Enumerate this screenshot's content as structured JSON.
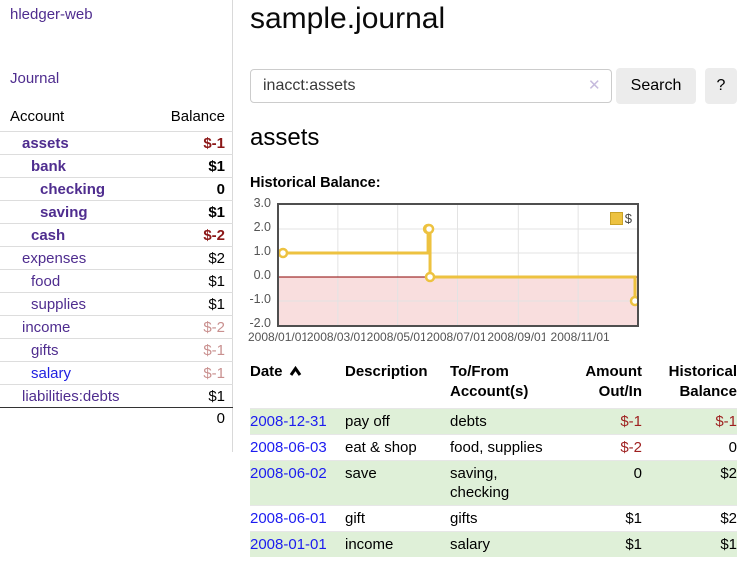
{
  "sidebar": {
    "brand": "hledger-web",
    "nav": {
      "journal_label": "Journal"
    },
    "accounts_table": {
      "headers": {
        "account": "Account",
        "balance": "Balance"
      },
      "rows": [
        {
          "name": "assets",
          "depth": 1,
          "balance": "$-1",
          "bold": true,
          "balance_style": "neg-strong"
        },
        {
          "name": "bank",
          "depth": 2,
          "balance": "$1",
          "bold": true,
          "balance_style": ""
        },
        {
          "name": "checking",
          "depth": 3,
          "balance": "0",
          "bold": true,
          "balance_style": ""
        },
        {
          "name": "saving",
          "depth": 3,
          "balance": "$1",
          "bold": true,
          "balance_style": ""
        },
        {
          "name": "cash",
          "depth": 2,
          "balance": "$-2",
          "bold": true,
          "balance_style": "neg-strong"
        },
        {
          "name": "expenses",
          "depth": 1,
          "balance": "$2",
          "bold": false,
          "balance_style": ""
        },
        {
          "name": "food",
          "depth": 2,
          "balance": "$1",
          "bold": false,
          "balance_style": ""
        },
        {
          "name": "supplies",
          "depth": 2,
          "balance": "$1",
          "bold": false,
          "balance_style": ""
        },
        {
          "name": "income",
          "depth": 1,
          "balance": "$-2",
          "bold": false,
          "balance_style": "neg-soft"
        },
        {
          "name": "gifts",
          "depth": 2,
          "balance": "$-1",
          "bold": false,
          "balance_style": "neg-soft"
        },
        {
          "name": "salary",
          "depth": 2,
          "balance": "$-1",
          "bold": false,
          "balance_style": "neg-soft",
          "name_style": "unvisited"
        },
        {
          "name": "liabilities:debts",
          "depth": 1,
          "balance": "$1",
          "bold": false,
          "balance_style": ""
        }
      ],
      "total": "0"
    }
  },
  "header": {
    "title": "sample.journal"
  },
  "search": {
    "value": "inacct:assets",
    "clear_icon": "✕",
    "button_label": "Search",
    "help_label": "?"
  },
  "account_page": {
    "heading": "assets",
    "chart_title": "Historical Balance:"
  },
  "chart_data": {
    "type": "line",
    "title": "Historical Balance",
    "step": true,
    "series": [
      {
        "name": "$",
        "color": "#EDC240",
        "points": [
          [
            "2008-01-01",
            1
          ],
          [
            "2008-06-01",
            2
          ],
          [
            "2008-06-02",
            2
          ],
          [
            "2008-06-03",
            0
          ],
          [
            "2008-12-31",
            -1
          ]
        ]
      }
    ],
    "x_range": [
      "2008-01-01",
      "2008-12-31"
    ],
    "y_range": [
      -2,
      3
    ],
    "y_ticks": [
      "3.0",
      "2.0",
      "1.0",
      "0.0",
      "-1.0",
      "-2.0"
    ],
    "y_tick_values": [
      3,
      2,
      1,
      0,
      -1,
      -2
    ],
    "x_ticks": [
      "2008/01/01",
      "2008/03/01",
      "2008/05/01",
      "2008/07/01",
      "2008/09/01",
      "2008/11/01"
    ],
    "legend": {
      "label": "$",
      "position": "top-right"
    },
    "grid": true,
    "colors": {
      "grid": "#e3e3e3",
      "zero_line": "#8b0000",
      "negative_region": "#f9dede",
      "border": "#4f4f4f"
    }
  },
  "register": {
    "columns": [
      "Date",
      "Description",
      "To/From Account(s)",
      "Amount Out/In",
      "Historical Balance"
    ],
    "rows": [
      {
        "date": "2008-12-31",
        "description": "pay off",
        "accounts": "debts",
        "amount": "$-1",
        "balance": "$-1",
        "amount_neg": true,
        "balance_neg": true,
        "shaded": true
      },
      {
        "date": "2008-06-03",
        "description": "eat & shop",
        "accounts": "food, supplies",
        "amount": "$-2",
        "balance": "0",
        "amount_neg": true,
        "balance_neg": false,
        "shaded": false
      },
      {
        "date": "2008-06-02",
        "description": "save",
        "accounts": "saving, checking",
        "amount": "0",
        "balance": "$2",
        "amount_neg": false,
        "balance_neg": false,
        "shaded": true
      },
      {
        "date": "2008-06-01",
        "description": "gift",
        "accounts": "gifts",
        "amount": "$1",
        "balance": "$2",
        "amount_neg": false,
        "balance_neg": false,
        "shaded": false
      },
      {
        "date": "2008-01-01",
        "description": "income",
        "accounts": "salary",
        "amount": "$1",
        "balance": "$1",
        "amount_neg": false,
        "balance_neg": false,
        "shaded": true
      }
    ]
  }
}
